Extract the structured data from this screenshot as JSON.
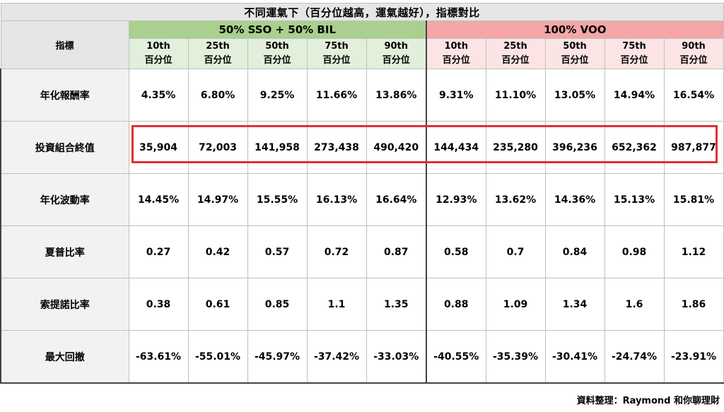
{
  "title": "不同運氣下（百分位越高，運氣越好），指標對比",
  "metric_header": "指標",
  "groups": [
    {
      "label": "50% SSO + 50% BIL",
      "color": "#a9d08e"
    },
    {
      "label": "100% VOO",
      "color": "#f4a6a6"
    }
  ],
  "percentiles": [
    {
      "rank": "10th",
      "label": "百分位"
    },
    {
      "rank": "25th",
      "label": "百分位"
    },
    {
      "rank": "50th",
      "label": "百分位"
    },
    {
      "rank": "75th",
      "label": "百分位"
    },
    {
      "rank": "90th",
      "label": "百分位"
    }
  ],
  "rows": [
    {
      "label": "年化報酬率",
      "values": [
        "4.35%",
        "6.80%",
        "9.25%",
        "11.66%",
        "13.86%",
        "9.31%",
        "11.10%",
        "13.05%",
        "14.94%",
        "16.54%"
      ]
    },
    {
      "label": "投資組合終值",
      "values": [
        "35,904",
        "72,003",
        "141,958",
        "273,438",
        "490,420",
        "144,434",
        "235,280",
        "396,236",
        "652,362",
        "987,877"
      ]
    },
    {
      "label": "年化波動率",
      "values": [
        "14.45%",
        "14.97%",
        "15.55%",
        "16.13%",
        "16.64%",
        "12.93%",
        "13.62%",
        "14.36%",
        "15.13%",
        "15.81%"
      ]
    },
    {
      "label": "夏普比率",
      "values": [
        "0.27",
        "0.42",
        "0.57",
        "0.72",
        "0.87",
        "0.58",
        "0.7",
        "0.84",
        "0.98",
        "1.12"
      ]
    },
    {
      "label": "索提諾比率",
      "values": [
        "0.38",
        "0.61",
        "0.85",
        "1.1",
        "1.35",
        "0.88",
        "1.09",
        "1.34",
        "1.6",
        "1.86"
      ]
    },
    {
      "label": "最大回撤",
      "values": [
        "-63.61%",
        "-55.01%",
        "-45.97%",
        "-37.42%",
        "-33.03%",
        "-40.55%",
        "-35.39%",
        "-30.41%",
        "-24.74%",
        "-23.91%"
      ]
    }
  ],
  "highlight_color": "#e03030",
  "credit": "資料整理：Raymond 和你聊理財"
}
